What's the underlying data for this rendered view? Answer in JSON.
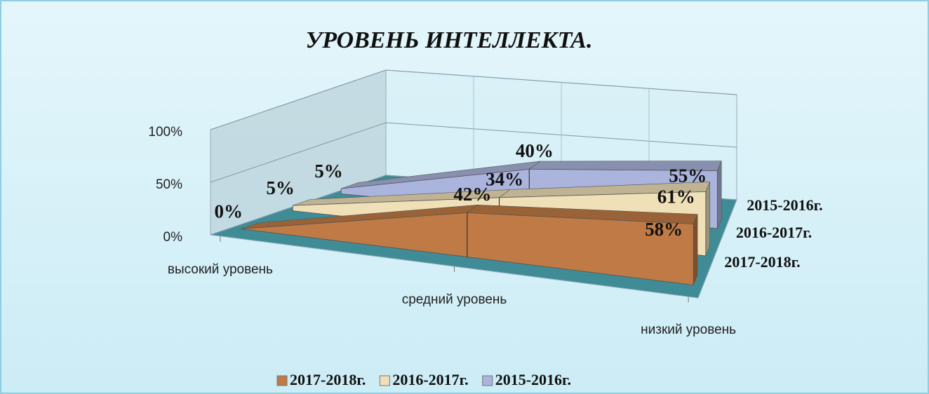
{
  "chart_data": {
    "type": "area3d",
    "title": "УРОВЕНЬ  ИНТЕЛЛЕКТА.",
    "categories": [
      "высокий уровень",
      "средний уровень",
      "низкий уровень"
    ],
    "series": [
      {
        "name": "2017-2018г.",
        "color": "#c07a45",
        "values": [
          0,
          42,
          58
        ],
        "value_labels": [
          "0%",
          "42%",
          "58%"
        ]
      },
      {
        "name": "2016-2017г.",
        "color": "#efe0b8",
        "values": [
          5,
          34,
          61
        ],
        "value_labels": [
          "5%",
          "34%",
          "61%"
        ]
      },
      {
        "name": "2015-2016г.",
        "color": "#aab4dc",
        "values": [
          5,
          40,
          55
        ],
        "value_labels": [
          "5%",
          "40%",
          "55%"
        ]
      }
    ],
    "ylim": [
      0,
      100
    ],
    "yticks": [
      {
        "value": 0,
        "label": "0%"
      },
      {
        "value": 50,
        "label": "50%"
      },
      {
        "value": 100,
        "label": "100%"
      }
    ],
    "grid": true,
    "legend": "bottom"
  }
}
